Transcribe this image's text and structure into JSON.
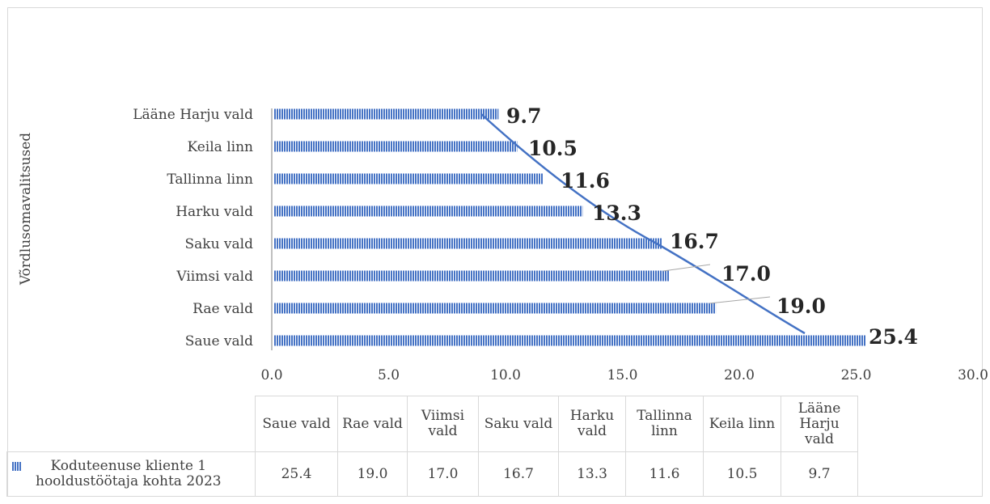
{
  "chart_data": {
    "type": "bar",
    "orientation": "horizontal",
    "title": "",
    "ylabel": "Võrdlusomavalitsused",
    "xlabel": "",
    "categories": [
      "Lääne Harju vald",
      "Keila linn",
      "Tallinna linn",
      "Harku vald",
      "Saku vald",
      "Viimsi vald",
      "Rae vald",
      "Saue vald"
    ],
    "series": [
      {
        "name": "Koduteenuse kliente 1 hooldustöötaja kohta 2023",
        "values": [
          9.7,
          10.5,
          11.6,
          13.3,
          16.7,
          17.0,
          19.0,
          25.4
        ]
      }
    ],
    "data_labels": [
      "9.7",
      "10.5",
      "11.6",
      "13.3",
      "16.7",
      "17.0",
      "19.0",
      "25.4"
    ],
    "xlim": [
      0,
      30
    ],
    "x_ticks": [
      "0.0",
      "5.0",
      "10.0",
      "15.0",
      "20.0",
      "25.0",
      "30.0"
    ],
    "trendline": {
      "type": "polynomial",
      "color": "#4472c4"
    },
    "bar_color": "#4472c4",
    "bar_pattern": "vertical-stripes",
    "grid": false,
    "legend": "data-table"
  },
  "data_table": {
    "headers": [
      "Saue vald",
      "Rae vald",
      "Viimsi vald",
      "Saku vald",
      "Harku vald",
      "Tallinna linn",
      "Keila linn",
      "Lääne Harju vald"
    ],
    "series_label_line1": "Koduteenuse kliente 1",
    "series_label_line2": "hooldustöötaja kohta 2023",
    "values": [
      "25.4",
      "19.0",
      "17.0",
      "16.7",
      "13.3",
      "11.6",
      "10.5",
      "9.7"
    ]
  }
}
